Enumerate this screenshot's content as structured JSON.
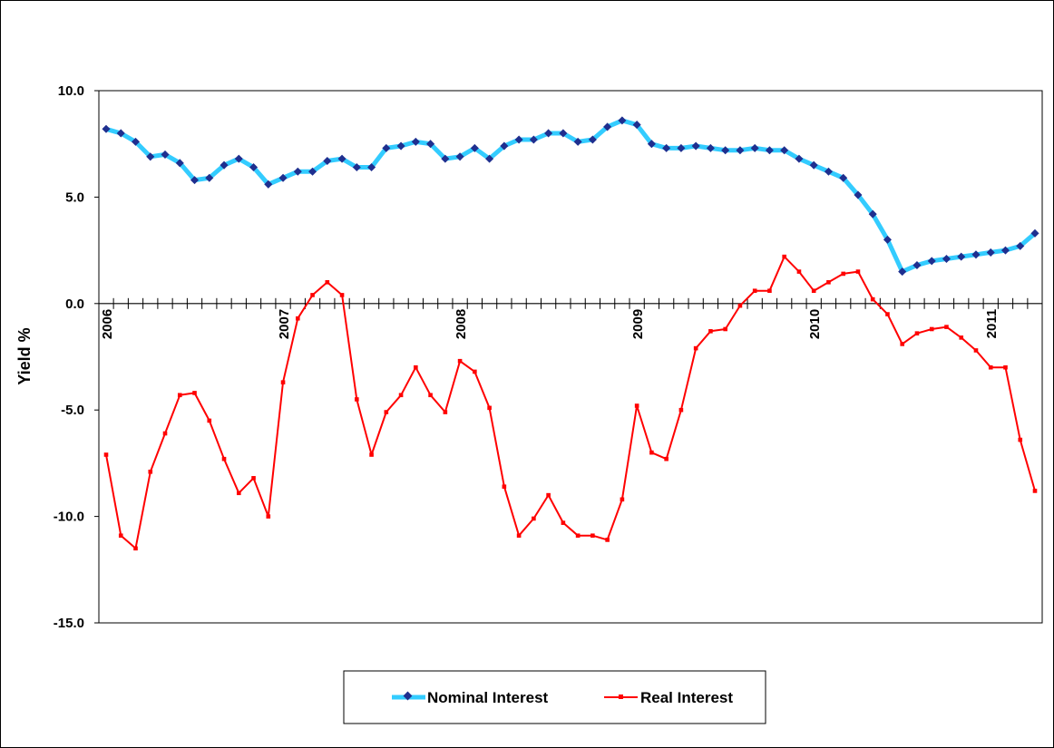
{
  "chart_data": {
    "type": "line",
    "title": "",
    "xlabel": "",
    "ylabel": "Yield %",
    "ylim": [
      -15,
      10
    ],
    "yticks": [
      10,
      5,
      0,
      -5,
      -10,
      -15
    ],
    "ytick_labels": [
      "10.0",
      "5.0",
      "0.0",
      "-5.0",
      "-10.0",
      "-15.0"
    ],
    "x_period_count": 64,
    "year_labels": [
      {
        "label": "2006",
        "index": 0
      },
      {
        "label": "2007",
        "index": 12
      },
      {
        "label": "2008",
        "index": 24
      },
      {
        "label": "2009",
        "index": 36
      },
      {
        "label": "2010",
        "index": 48
      },
      {
        "label": "2011",
        "index": 60
      }
    ],
    "grid": false,
    "legend_position": "bottom",
    "series": [
      {
        "name": "Nominal Interest",
        "color": "#33CCFF",
        "marker_color": "#1F2F8F",
        "values": [
          8.2,
          8.0,
          7.6,
          6.9,
          7.0,
          6.6,
          5.8,
          5.9,
          6.5,
          6.8,
          6.4,
          5.6,
          5.9,
          6.2,
          6.2,
          6.7,
          6.8,
          6.4,
          6.4,
          7.3,
          7.4,
          7.6,
          7.5,
          6.8,
          6.9,
          7.3,
          6.8,
          7.4,
          7.7,
          7.7,
          8.0,
          8.0,
          7.6,
          7.7,
          8.3,
          8.6,
          8.4,
          7.5,
          7.3,
          7.3,
          7.4,
          7.3,
          7.2,
          7.2,
          7.3,
          7.2,
          7.2,
          6.8,
          6.5,
          6.2,
          5.9,
          5.1,
          4.2,
          3.0,
          1.5,
          1.8,
          2.0,
          2.1,
          2.2,
          2.3,
          2.4,
          2.5,
          2.7,
          3.3
        ]
      },
      {
        "name": "Real Interest",
        "color": "#FF0000",
        "marker_color": "#FF0000",
        "values": [
          -7.1,
          -10.9,
          -11.5,
          -7.9,
          -6.1,
          -4.3,
          -4.2,
          -5.5,
          -7.3,
          -8.9,
          -8.2,
          -10.0,
          -3.7,
          -0.7,
          0.4,
          1.0,
          0.4,
          -4.5,
          -7.1,
          -5.1,
          -4.3,
          -3.0,
          -4.3,
          -5.1,
          -2.7,
          -3.2,
          -4.9,
          -8.6,
          -10.9,
          -10.1,
          -9.0,
          -10.3,
          -10.9,
          -10.9,
          -11.1,
          -9.2,
          -4.8,
          -7.0,
          -7.3,
          -5.0,
          -2.1,
          -1.3,
          -1.2,
          -0.1,
          0.6,
          0.6,
          2.2,
          1.5,
          0.6,
          1.0,
          1.4,
          1.5,
          0.2,
          -0.5,
          -1.9,
          -1.4,
          -1.2,
          -1.1,
          -1.6,
          -2.2,
          -3.0,
          -3.0,
          -6.4,
          -8.8
        ]
      }
    ]
  },
  "legend": {
    "items": [
      {
        "label": "Nominal Interest",
        "color": "#33CCFF",
        "marker_color": "#1F2F8F"
      },
      {
        "label": "Real Interest",
        "color": "#FF0000",
        "marker_color": "#FF0000"
      }
    ]
  }
}
